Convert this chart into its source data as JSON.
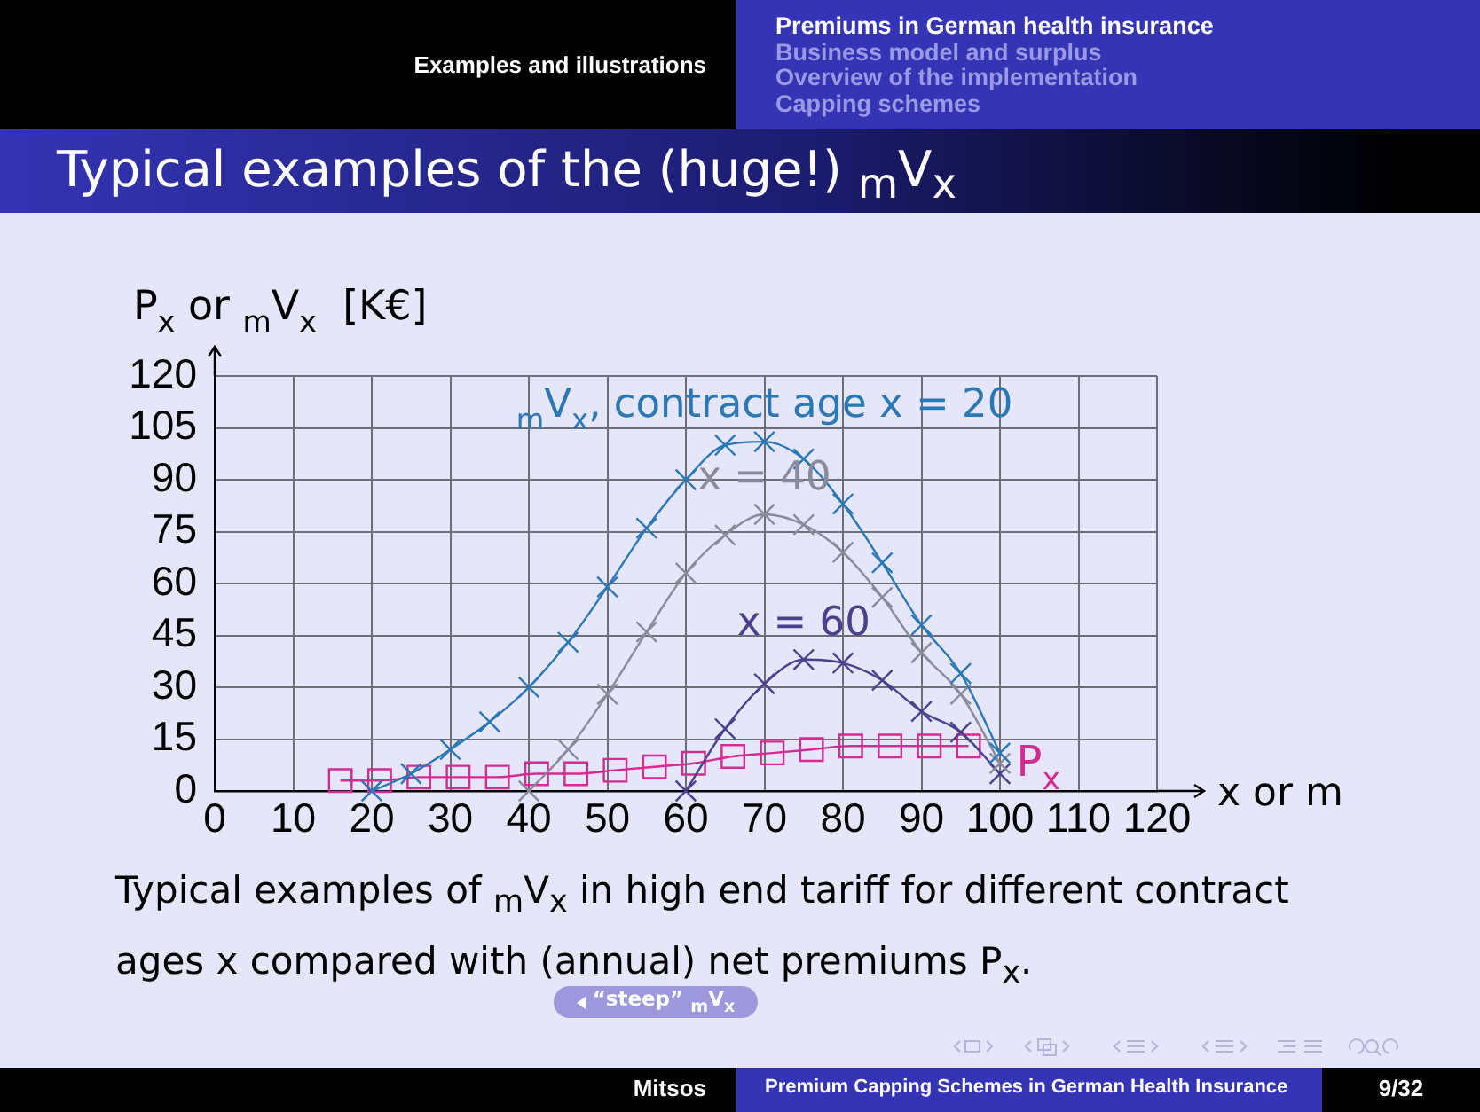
{
  "chart_data": {
    "type": "line",
    "title": "Typical examples of the (huge!) $_{m}$V$_{x}$",
    "xlabel": "x or m",
    "ylabel": "P$_{x}$ or $_{m}$V$_{x}$  [K€]",
    "xlim": [
      0,
      120
    ],
    "xticks": [
      0,
      10,
      20,
      30,
      40,
      50,
      60,
      70,
      80,
      90,
      100,
      110,
      120
    ],
    "ylim": [
      0,
      120
    ],
    "yticks": [
      0,
      15,
      30,
      45,
      60,
      75,
      90,
      105,
      120
    ],
    "grid": true,
    "line_style": "solid",
    "series": [
      {
        "name": "$_{m}$V$_{x}$, contract age x = 20",
        "color": "#2a78b6",
        "marker": "cross",
        "x": [
          20,
          25,
          30,
          35,
          40,
          45,
          50,
          55,
          60,
          65,
          70,
          75,
          80,
          85,
          90,
          95,
          100
        ],
        "values": [
          0,
          5,
          12,
          20,
          30,
          43,
          59,
          76,
          90,
          100,
          101,
          96,
          83,
          66,
          48,
          34,
          11
        ]
      },
      {
        "name": "x = 40",
        "color": "#8a8a9c",
        "marker": "cross",
        "x": [
          40,
          45,
          50,
          55,
          60,
          65,
          70,
          75,
          80,
          85,
          90,
          95,
          100
        ],
        "values": [
          0,
          12,
          28,
          46,
          63,
          74,
          80,
          77,
          69,
          56,
          40,
          28,
          8
        ]
      },
      {
        "name": "x = 60",
        "color": "#4b3f8e",
        "marker": "cross",
        "x": [
          60,
          65,
          70,
          75,
          80,
          85,
          90,
          95,
          100
        ],
        "values": [
          0,
          18,
          31,
          38,
          37,
          32,
          23,
          17,
          5
        ]
      },
      {
        "name": "P$_{x}$",
        "color": "#d42a92",
        "marker": "square",
        "x": [
          16,
          21,
          26,
          31,
          36,
          41,
          46,
          51,
          56,
          61,
          66,
          71,
          76,
          81,
          86,
          91,
          96
        ],
        "values": [
          3,
          3,
          4,
          4,
          4,
          5,
          5,
          6,
          7,
          8,
          10,
          11,
          12,
          13,
          13,
          13,
          13
        ]
      }
    ],
    "annotations": [
      "Examples and illustrations",
      "Premiums in German health insurance",
      "Business model and surplus",
      "Overview of the implementation",
      "Capping schemes",
      "Typical examples of $_{m}$V$_{x}$ in high end tariff for different contract ages x compared with (annual) net premiums P$_{x}$.",
      "“steep” $_{m}$V$_{x}$",
      "Mitsos",
      "Premium Capping Schemes in German Health Insurance",
      "9/32"
    ]
  }
}
